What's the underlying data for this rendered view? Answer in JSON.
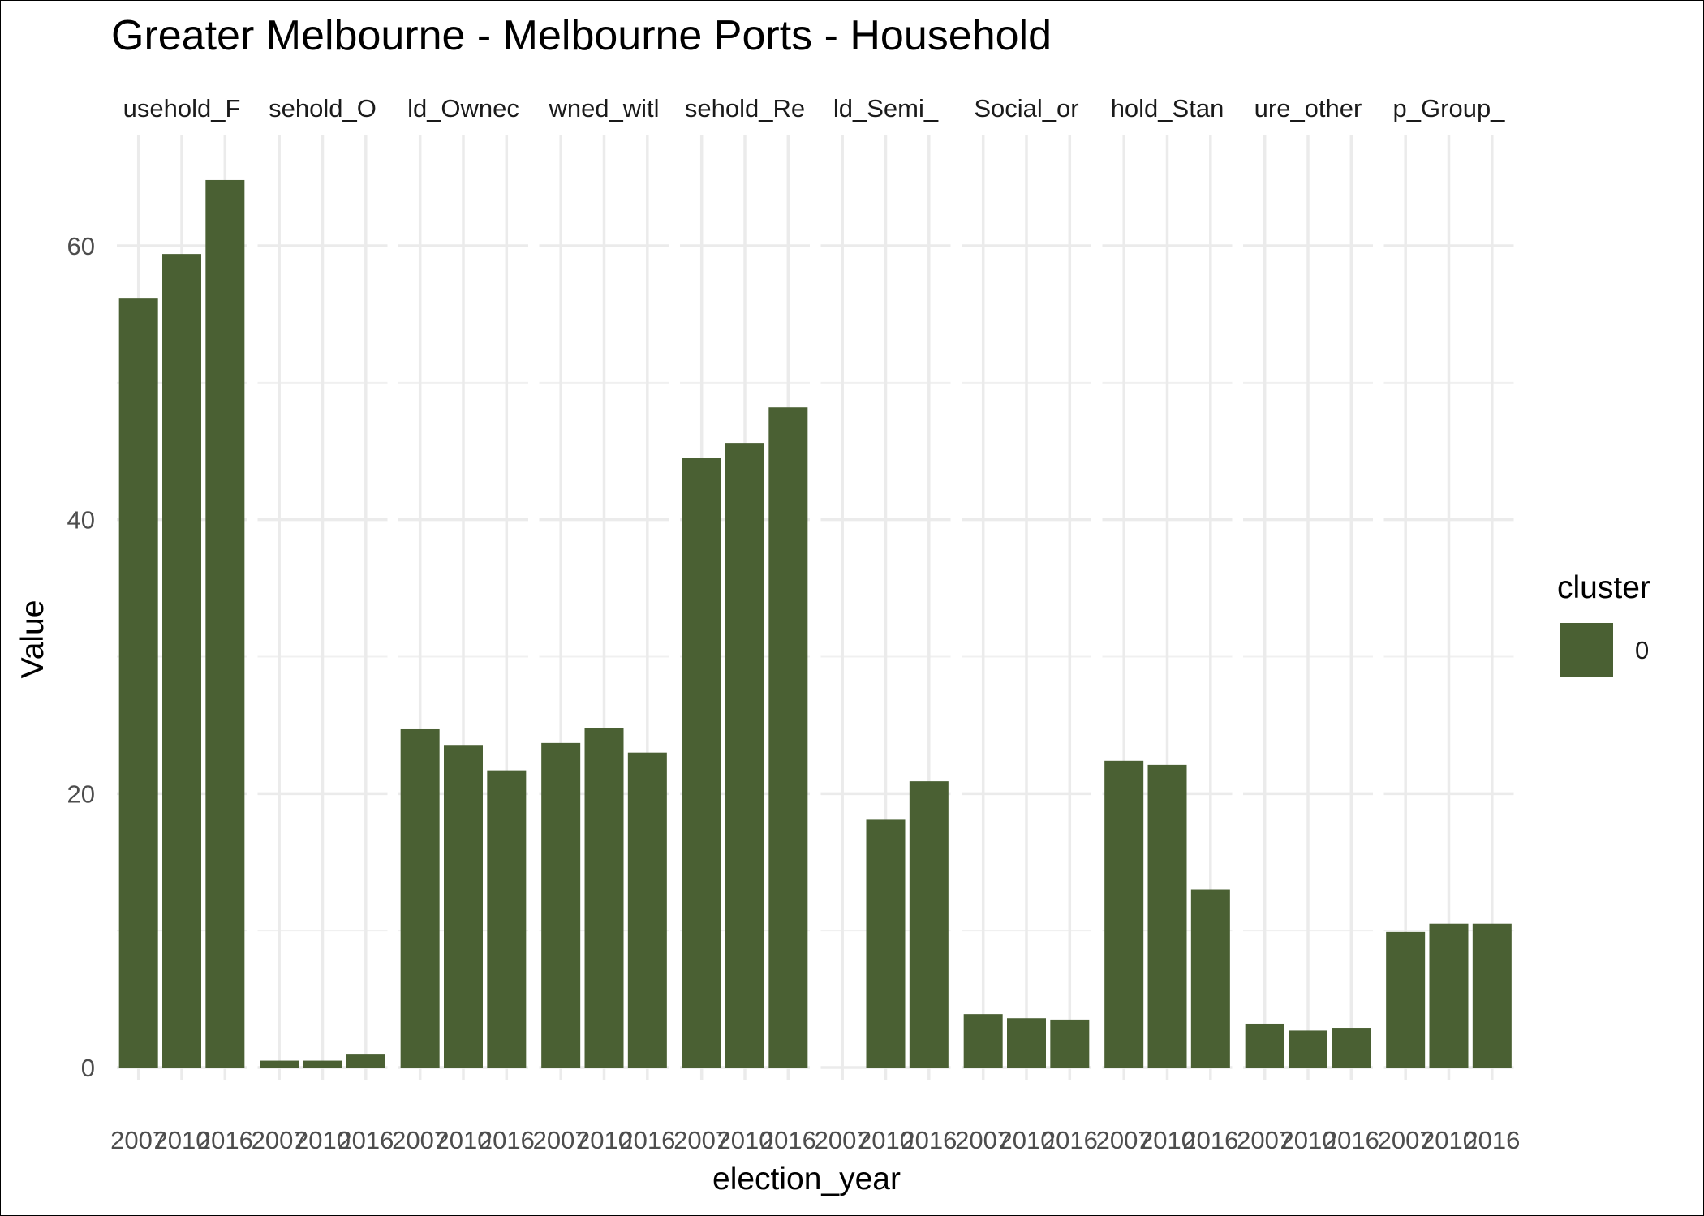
{
  "chart_data": {
    "type": "bar",
    "title": "Greater Melbourne - Melbourne Ports - Household",
    "xlabel": "election_year",
    "ylabel": "Value",
    "ylim": [
      0,
      68
    ],
    "y_ticks": [
      0,
      20,
      40,
      60
    ],
    "grid": true,
    "legend_position": "right",
    "legend": {
      "title": "cluster",
      "entries": [
        {
          "label": "0",
          "color": "#4a6033"
        }
      ]
    },
    "bar_color": "#4a6033",
    "categories": [
      "2007",
      "2010",
      "2016"
    ],
    "facets": [
      {
        "label": "usehold_F",
        "values": [
          56.2,
          59.4,
          64.8
        ]
      },
      {
        "label": "sehold_O",
        "values": [
          0.5,
          0.5,
          1.0
        ]
      },
      {
        "label": "ld_Ownec",
        "values": [
          24.7,
          23.5,
          21.7
        ]
      },
      {
        "label": "wned_witl",
        "values": [
          23.7,
          24.8,
          23.0
        ]
      },
      {
        "label": "sehold_Re",
        "values": [
          44.5,
          45.6,
          48.2
        ]
      },
      {
        "label": "ld_Semi_",
        "values": [
          null,
          18.1,
          20.9
        ]
      },
      {
        "label": "Social_or",
        "values": [
          3.9,
          3.6,
          3.5
        ]
      },
      {
        "label": "hold_Stan",
        "values": [
          22.4,
          22.1,
          13.0
        ]
      },
      {
        "label": "ure_other",
        "values": [
          3.2,
          2.7,
          2.9
        ]
      },
      {
        "label": "p_Group_",
        "values": [
          9.9,
          10.5,
          10.5
        ]
      }
    ]
  }
}
